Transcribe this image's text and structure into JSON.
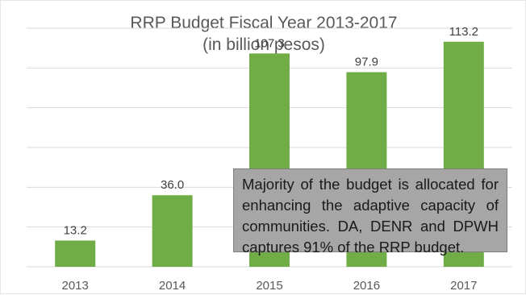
{
  "chart_data": {
    "type": "bar",
    "title": "RRP Budget Fiscal Year 2013-2017",
    "subtitle": "(in billion pesos)",
    "categories": [
      "2013",
      "2014",
      "2015",
      "2016",
      "2017"
    ],
    "values": [
      13.2,
      36.0,
      107.3,
      97.9,
      113.2
    ],
    "data_labels": [
      "13.2",
      "36.0",
      "107.3",
      "97.9",
      "113.2"
    ],
    "xlabel": "",
    "ylabel": "",
    "ylim": [
      0,
      120
    ],
    "gridlines": [
      0,
      20,
      40,
      60,
      80,
      100,
      120
    ],
    "grid": true,
    "legend": "none",
    "bar_color": "#70ad47",
    "grid_color": "#d9d9d9",
    "annotation": "Majority of the budget is allocated for enhancing the adaptive capacity of communities. DA, DENR and DPWH captures 91% of the RRP budget."
  }
}
